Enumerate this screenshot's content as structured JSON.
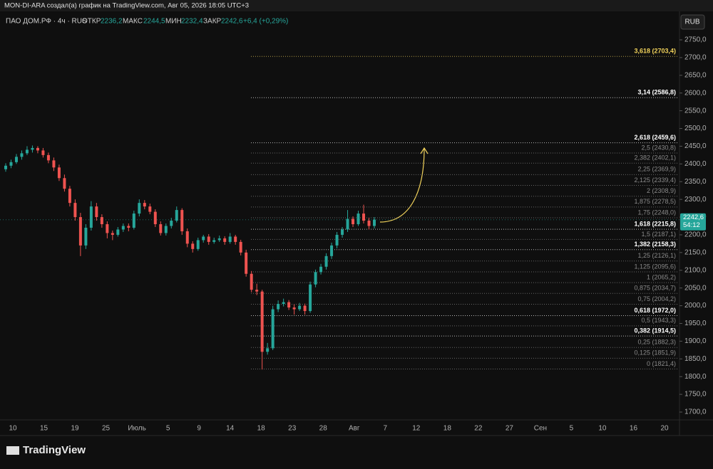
{
  "header": {
    "credit": "MON-DI-ARA создал(а) график на TradingView.com, Авг 05, 2026 18:05 UTC+3",
    "symbol": "ПАО ДОМ.РФ · 4ч · RUS",
    "open_label": "ОТКР",
    "open": "2236,2",
    "high_label": "МАКС",
    "high": "2244,5",
    "low_label": "МИН",
    "low": "2232,4",
    "close_label": "ЗАКР",
    "close": "2242,6",
    "change": "+6,4 (+0,29%)",
    "currency": "RUB",
    "logo": "TradingView"
  },
  "chart_data": {
    "type": "candlestick",
    "up_color": "#26a69a",
    "down_color": "#ef5350",
    "ohlc": [
      [
        2385,
        2402,
        2378,
        2395
      ],
      [
        2395,
        2412,
        2388,
        2405
      ],
      [
        2405,
        2428,
        2400,
        2420
      ],
      [
        2420,
        2438,
        2412,
        2430
      ],
      [
        2430,
        2450,
        2425,
        2440
      ],
      [
        2440,
        2452,
        2432,
        2445
      ],
      [
        2445,
        2450,
        2430,
        2438
      ],
      [
        2438,
        2445,
        2418,
        2425
      ],
      [
        2425,
        2432,
        2402,
        2410
      ],
      [
        2410,
        2418,
        2380,
        2390
      ],
      [
        2390,
        2398,
        2352,
        2360
      ],
      [
        2360,
        2370,
        2322,
        2330
      ],
      [
        2330,
        2338,
        2280,
        2290
      ],
      [
        2290,
        2300,
        2240,
        2250
      ],
      [
        2250,
        2262,
        2140,
        2170
      ],
      [
        2170,
        2230,
        2160,
        2220
      ],
      [
        2220,
        2295,
        2212,
        2280
      ],
      [
        2280,
        2290,
        2240,
        2250
      ],
      [
        2250,
        2258,
        2220,
        2230
      ],
      [
        2230,
        2238,
        2190,
        2205
      ],
      [
        2205,
        2212,
        2185,
        2200
      ],
      [
        2200,
        2222,
        2195,
        2215
      ],
      [
        2215,
        2232,
        2208,
        2225
      ],
      [
        2225,
        2232,
        2210,
        2220
      ],
      [
        2220,
        2268,
        2215,
        2260
      ],
      [
        2260,
        2300,
        2252,
        2290
      ],
      [
        2290,
        2298,
        2272,
        2280
      ],
      [
        2280,
        2288,
        2258,
        2265
      ],
      [
        2265,
        2272,
        2222,
        2230
      ],
      [
        2230,
        2238,
        2198,
        2205
      ],
      [
        2205,
        2232,
        2198,
        2225
      ],
      [
        2225,
        2248,
        2218,
        2240
      ],
      [
        2240,
        2280,
        2235,
        2270
      ],
      [
        2270,
        2275,
        2200,
        2210
      ],
      [
        2210,
        2218,
        2165,
        2175
      ],
      [
        2175,
        2182,
        2150,
        2160
      ],
      [
        2160,
        2192,
        2155,
        2185
      ],
      [
        2185,
        2200,
        2178,
        2195
      ],
      [
        2195,
        2202,
        2172,
        2180
      ],
      [
        2180,
        2192,
        2175,
        2185
      ],
      [
        2185,
        2198,
        2180,
        2190
      ],
      [
        2190,
        2196,
        2172,
        2180
      ],
      [
        2180,
        2205,
        2175,
        2195
      ],
      [
        2195,
        2200,
        2172,
        2180
      ],
      [
        2180,
        2186,
        2142,
        2150
      ],
      [
        2150,
        2158,
        2082,
        2090
      ],
      [
        2090,
        2098,
        2038,
        2045
      ],
      [
        2045,
        2062,
        2030,
        2040
      ],
      [
        2040,
        2045,
        1820,
        1870
      ],
      [
        1870,
        1895,
        1862,
        1880
      ],
      [
        1880,
        2000,
        1875,
        1990
      ],
      [
        1990,
        2015,
        1982,
        2005
      ],
      [
        2005,
        2020,
        1998,
        2010
      ],
      [
        2010,
        2016,
        1988,
        1995
      ],
      [
        1995,
        2004,
        1975,
        1990
      ],
      [
        1990,
        2008,
        1985,
        2000
      ],
      [
        2000,
        2006,
        1975,
        1985
      ],
      [
        1985,
        2068,
        1980,
        2060
      ],
      [
        2060,
        2102,
        2052,
        2095
      ],
      [
        2095,
        2118,
        2088,
        2110
      ],
      [
        2110,
        2148,
        2102,
        2140
      ],
      [
        2140,
        2178,
        2132,
        2170
      ],
      [
        2170,
        2208,
        2162,
        2200
      ],
      [
        2200,
        2222,
        2192,
        2215
      ],
      [
        2215,
        2270,
        2208,
        2245
      ],
      [
        2245,
        2252,
        2222,
        2230
      ],
      [
        2230,
        2268,
        2225,
        2260
      ],
      [
        2260,
        2285,
        2232,
        2240
      ],
      [
        2240,
        2248,
        2215,
        2225
      ],
      [
        2225,
        2250,
        2218,
        2243
      ]
    ],
    "ylim": [
      1700,
      2750
    ],
    "yticks": [
      {
        "value": 2750,
        "label": "2750,0"
      },
      {
        "value": 2700,
        "label": "2700,0"
      },
      {
        "value": 2650,
        "label": "2650,0"
      },
      {
        "value": 2600,
        "label": "2600,0"
      },
      {
        "value": 2550,
        "label": "2550,0"
      },
      {
        "value": 2500,
        "label": "2500,0"
      },
      {
        "value": 2450,
        "label": "2450,0"
      },
      {
        "value": 2400,
        "label": "2400,0"
      },
      {
        "value": 2350,
        "label": "2350,0"
      },
      {
        "value": 2300,
        "label": "2300,0"
      },
      {
        "value": 2250,
        "label": "2250,0"
      },
      {
        "value": 2200,
        "label": "2200,0"
      },
      {
        "value": 2150,
        "label": "2150,0"
      },
      {
        "value": 2100,
        "label": "2100,0"
      },
      {
        "value": 2050,
        "label": "2050,0"
      },
      {
        "value": 2000,
        "label": "2000,0"
      },
      {
        "value": 1950,
        "label": "1950,0"
      },
      {
        "value": 1900,
        "label": "1900,0"
      },
      {
        "value": 1850,
        "label": "1850,0"
      },
      {
        "value": 1800,
        "label": "1800,0"
      },
      {
        "value": 1750,
        "label": "1750,0"
      },
      {
        "value": 1700,
        "label": "1700,0"
      }
    ],
    "x_labels": [
      "10",
      "15",
      "19",
      "25",
      "Июль",
      "5",
      "9",
      "14",
      "18",
      "23",
      "28",
      "Авг",
      "7",
      "12",
      "18",
      "22",
      "27",
      "Сен",
      "5",
      "10",
      "16",
      "20"
    ],
    "last_price": {
      "value": 2242.6,
      "label": "2242,6"
    },
    "timer": "54:12",
    "fib_levels": [
      {
        "value": 2703.4,
        "label": "3,618 (2703,4)",
        "color": "#f2d35b"
      },
      {
        "value": 2586.8,
        "label": "3,14 (2586,8)",
        "color": "#ffffff"
      },
      {
        "value": 2459.6,
        "label": "2,618 (2459,6)",
        "color": "#ffffff"
      },
      {
        "value": 2430.8,
        "label": "2,5 (2430,8)",
        "color": "#8a8a8a"
      },
      {
        "value": 2402.1,
        "label": "2,382 (2402,1)",
        "color": "#8a8a8a"
      },
      {
        "value": 2369.9,
        "label": "2,25 (2369,9)",
        "color": "#8a8a8a"
      },
      {
        "value": 2339.4,
        "label": "2,125 (2339,4)",
        "color": "#8a8a8a"
      },
      {
        "value": 2308.9,
        "label": "2 (2308,9)",
        "color": "#8a8a8a"
      },
      {
        "value": 2278.5,
        "label": "1,875 (2278,5)",
        "color": "#8a8a8a"
      },
      {
        "value": 2248.0,
        "label": "1,75 (2248,0)",
        "color": "#8a8a8a"
      },
      {
        "value": 2215.8,
        "label": "1,618 (2215,8)",
        "color": "#ffffff"
      },
      {
        "value": 2187.1,
        "label": "1,5 (2187,1)",
        "color": "#8a8a8a"
      },
      {
        "value": 2158.3,
        "label": "1,382 (2158,3)",
        "color": "#ffffff"
      },
      {
        "value": 2126.1,
        "label": "1,25 (2126,1)",
        "color": "#8a8a8a"
      },
      {
        "value": 2095.6,
        "label": "1,125 (2095,6)",
        "color": "#8a8a8a"
      },
      {
        "value": 2065.2,
        "label": "1 (2065,2)",
        "color": "#8a8a8a"
      },
      {
        "value": 2034.7,
        "label": "0,875 (2034,7)",
        "color": "#8a8a8a"
      },
      {
        "value": 2004.2,
        "label": "0,75 (2004,2)",
        "color": "#8a8a8a"
      },
      {
        "value": 1972.0,
        "label": "0,618 (1972,0)",
        "color": "#ffffff"
      },
      {
        "value": 1943.3,
        "label": "0,5 (1943,3)",
        "color": "#8a8a8a"
      },
      {
        "value": 1914.5,
        "label": "0,382 (1914,5)",
        "color": "#ffffff"
      },
      {
        "value": 1882.3,
        "label": "0,25 (1882,3)",
        "color": "#8a8a8a"
      },
      {
        "value": 1851.9,
        "label": "0,125 (1851,9)",
        "color": "#8a8a8a"
      },
      {
        "value": 1821.4,
        "label": "0 (1821,4)",
        "color": "#8a8a8a"
      }
    ]
  }
}
